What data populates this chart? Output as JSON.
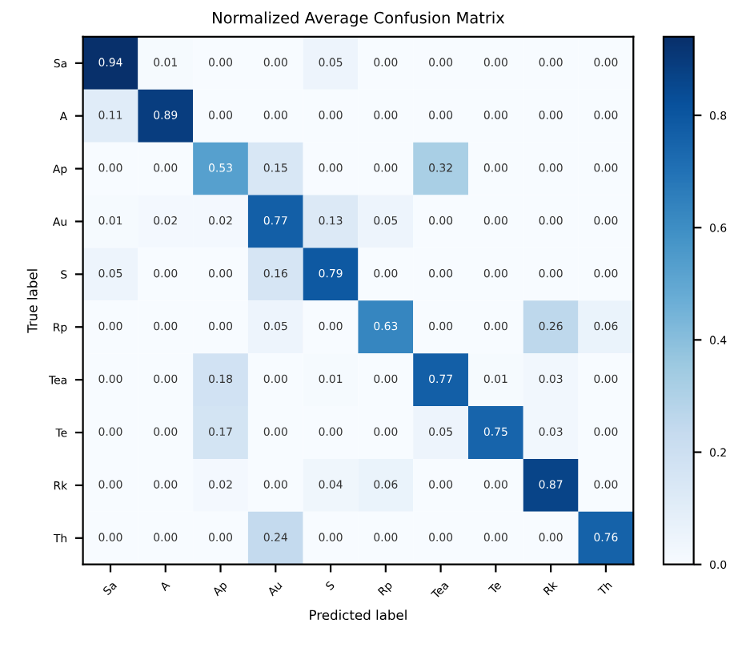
{
  "chart_data": {
    "type": "heatmap",
    "title": "Normalized Average Confusion Matrix",
    "xlabel": "Predicted label",
    "ylabel": "True label",
    "categories": [
      "Sa",
      "A",
      "Ap",
      "Au",
      "S",
      "Rp",
      "Tea",
      "Te",
      "Rk",
      "Th"
    ],
    "y_categories": [
      "Sa",
      "A",
      "Ap",
      "Au",
      "S",
      "Rp",
      "Tea",
      "Te",
      "Rk",
      "Th"
    ],
    "cells": [
      [
        0.94,
        0.01,
        0.0,
        0.0,
        0.05,
        0.0,
        0.0,
        0.0,
        0.0,
        0.0
      ],
      [
        0.11,
        0.89,
        0.0,
        0.0,
        0.0,
        0.0,
        0.0,
        0.0,
        0.0,
        0.0
      ],
      [
        0.0,
        0.0,
        0.53,
        0.15,
        0.0,
        0.0,
        0.32,
        0.0,
        0.0,
        0.0
      ],
      [
        0.01,
        0.02,
        0.02,
        0.77,
        0.13,
        0.05,
        0.0,
        0.0,
        0.0,
        0.0
      ],
      [
        0.05,
        0.0,
        0.0,
        0.16,
        0.79,
        0.0,
        0.0,
        0.0,
        0.0,
        0.0
      ],
      [
        0.0,
        0.0,
        0.0,
        0.05,
        0.0,
        0.63,
        0.0,
        0.0,
        0.26,
        0.06
      ],
      [
        0.0,
        0.0,
        0.18,
        0.0,
        0.01,
        0.0,
        0.77,
        0.01,
        0.03,
        0.0
      ],
      [
        0.0,
        0.0,
        0.17,
        0.0,
        0.0,
        0.0,
        0.05,
        0.75,
        0.03,
        0.0
      ],
      [
        0.0,
        0.0,
        0.02,
        0.0,
        0.04,
        0.06,
        0.0,
        0.0,
        0.87,
        0.0
      ],
      [
        0.0,
        0.0,
        0.0,
        0.24,
        0.0,
        0.0,
        0.0,
        0.0,
        0.0,
        0.76
      ]
    ],
    "clim": [
      0,
      0.94
    ],
    "cticks": [
      {
        "value": 0,
        "label": "0.0"
      },
      {
        "value": 0.2,
        "label": "0.2"
      },
      {
        "value": 0.4,
        "label": "0.4"
      },
      {
        "value": 0.6,
        "label": "0.6"
      },
      {
        "value": 0.8,
        "label": "0.8"
      }
    ],
    "cell_labels": [
      [
        "0.94",
        "0.01",
        "0.00",
        "0.00",
        "0.05",
        "0.00",
        "0.00",
        "0.00",
        "0.00",
        "0.00"
      ],
      [
        "0.11",
        "0.89",
        "0.00",
        "0.00",
        "0.00",
        "0.00",
        "0.00",
        "0.00",
        "0.00",
        "0.00"
      ],
      [
        "0.00",
        "0.00",
        "0.53",
        "0.15",
        "0.00",
        "0.00",
        "0.32",
        "0.00",
        "0.00",
        "0.00"
      ],
      [
        "0.01",
        "0.02",
        "0.02",
        "0.77",
        "0.13",
        "0.05",
        "0.00",
        "0.00",
        "0.00",
        "0.00"
      ],
      [
        "0.05",
        "0.00",
        "0.00",
        "0.16",
        "0.79",
        "0.00",
        "0.00",
        "0.00",
        "0.00",
        "0.00"
      ],
      [
        "0.00",
        "0.00",
        "0.00",
        "0.05",
        "0.00",
        "0.63",
        "0.00",
        "0.00",
        "0.26",
        "0.06"
      ],
      [
        "0.00",
        "0.00",
        "0.18",
        "0.00",
        "0.01",
        "0.00",
        "0.77",
        "0.01",
        "0.03",
        "0.00"
      ],
      [
        "0.00",
        "0.00",
        "0.17",
        "0.00",
        "0.00",
        "0.00",
        "0.05",
        "0.75",
        "0.03",
        "0.00"
      ],
      [
        "0.00",
        "0.00",
        "0.02",
        "0.00",
        "0.04",
        "0.06",
        "0.00",
        "0.00",
        "0.87",
        "0.00"
      ],
      [
        "0.00",
        "0.00",
        "0.00",
        "0.24",
        "0.00",
        "0.00",
        "0.00",
        "0.00",
        "0.00",
        "0.76"
      ]
    ]
  }
}
